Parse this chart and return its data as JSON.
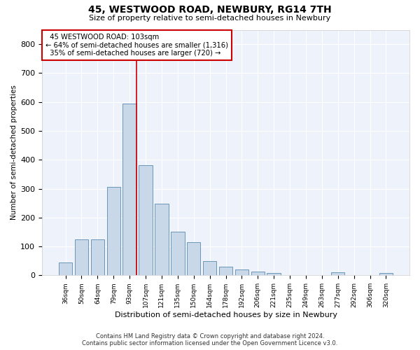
{
  "title": "45, WESTWOOD ROAD, NEWBURY, RG14 7TH",
  "subtitle": "Size of property relative to semi-detached houses in Newbury",
  "xlabel": "Distribution of semi-detached houses by size in Newbury",
  "ylabel": "Number of semi-detached properties",
  "categories": [
    "36sqm",
    "50sqm",
    "64sqm",
    "79sqm",
    "93sqm",
    "107sqm",
    "121sqm",
    "135sqm",
    "150sqm",
    "164sqm",
    "178sqm",
    "192sqm",
    "206sqm",
    "221sqm",
    "235sqm",
    "249sqm",
    "263sqm",
    "277sqm",
    "292sqm",
    "306sqm",
    "320sqm"
  ],
  "values": [
    45,
    125,
    125,
    305,
    595,
    380,
    248,
    152,
    115,
    50,
    30,
    20,
    13,
    7,
    2,
    2,
    2,
    10,
    2,
    2,
    7
  ],
  "bar_color": "#c8d8e8",
  "bar_edge_color": "#5a8ab0",
  "background_color": "#eef2fa",
  "grid_color": "#ffffff",
  "property_label": "45 WESTWOOD ROAD: 103sqm",
  "pct_smaller": 64,
  "pct_smaller_count": 1316,
  "pct_larger": 35,
  "pct_larger_count": 720,
  "annotation_box_color": "#ffffff",
  "annotation_box_edge": "#cc0000",
  "vline_color": "#cc0000",
  "vline_x": 4.43,
  "ylim": [
    0,
    850
  ],
  "yticks": [
    0,
    100,
    200,
    300,
    400,
    500,
    600,
    700,
    800
  ],
  "footnote1": "Contains HM Land Registry data © Crown copyright and database right 2024.",
  "footnote2": "Contains public sector information licensed under the Open Government Licence v3.0."
}
